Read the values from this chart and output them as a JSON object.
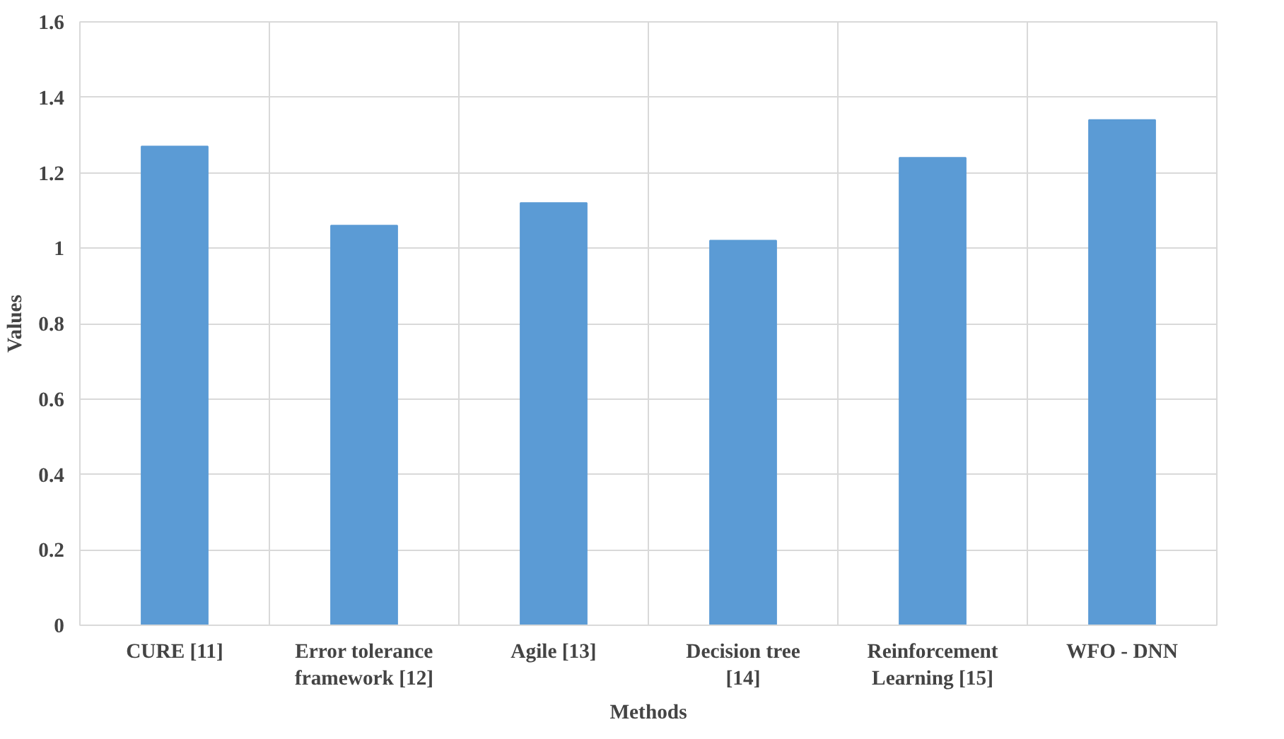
{
  "chart_data": {
    "type": "bar",
    "xlabel": "Methods",
    "ylabel": "Values",
    "categories": [
      "CURE [11]",
      "Error tolerance framework [12]",
      "Agile [13]",
      "Decision tree [14]",
      "Reinforcement Learning [15]",
      "WFO - DNN"
    ],
    "values": [
      1.27,
      1.06,
      1.12,
      1.02,
      1.24,
      1.34
    ],
    "color": "#5b9bd5",
    "ylim": [
      0,
      1.6
    ],
    "yticks": [
      0,
      0.2,
      0.4,
      0.6,
      0.8,
      1,
      1.2,
      1.4,
      1.6
    ],
    "grid": true
  }
}
